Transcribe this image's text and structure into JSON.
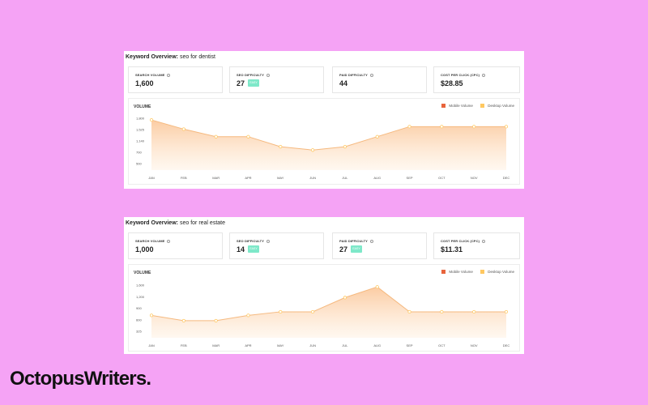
{
  "colors": {
    "background": "#f5a3f5",
    "mobile_volume": "#e8643c",
    "desktop_volume": "#ffc860",
    "area_fill": "#fbc99d",
    "line": "#f5b97f",
    "easy_badge": "#7ee8c9"
  },
  "icons": {
    "info": "info-circle-icon"
  },
  "panels": [
    {
      "title_prefix": "Keyword Overview:",
      "keyword": "seo for dentist",
      "metrics": [
        {
          "label": "SEARCH VOLUME",
          "value": "1,600"
        },
        {
          "label": "SEO DIFFICULTY",
          "value": "27",
          "badge": "EASY"
        },
        {
          "label": "PAID DIFFICULTY",
          "value": "44"
        },
        {
          "label": "COST PER CLICK (CPC)",
          "value": "$28.85"
        }
      ],
      "chart_title": "VOLUME",
      "legend": [
        "Mobile Volume",
        "Desktop Volume"
      ]
    },
    {
      "title_prefix": "Keyword Overview:",
      "keyword": "seo for real estate",
      "metrics": [
        {
          "label": "SEARCH VOLUME",
          "value": "1,000"
        },
        {
          "label": "SEO DIFFICULTY",
          "value": "14",
          "badge": "EASY"
        },
        {
          "label": "PAID DIFFICULTY",
          "value": "27",
          "badge": "EASY"
        },
        {
          "label": "COST PER CLICK (CPC)",
          "value": "$11.31"
        }
      ],
      "chart_title": "VOLUME",
      "legend": [
        "Mobile Volume",
        "Desktop Volume"
      ]
    }
  ],
  "chart_data": [
    {
      "type": "area",
      "title": "",
      "categories": [
        "JAN",
        "FEB",
        "MAR",
        "APR",
        "MAY",
        "JUN",
        "JUL",
        "AUG",
        "SEP",
        "OCT",
        "NOV",
        "DEC"
      ],
      "y_ticks": [
        "1,800",
        "1,525",
        "1,140",
        "700",
        "500"
      ],
      "ylim": [
        300,
        1850
      ],
      "series": [
        {
          "name": "Desktop Volume",
          "values": [
            1800,
            1525,
            1300,
            1300,
            1000,
            900,
            1000,
            1300,
            1600,
            1600,
            1600,
            1600
          ]
        }
      ],
      "grid": false,
      "legend_position": "top-right"
    },
    {
      "type": "area",
      "title": "",
      "categories": [
        "JAN",
        "FEB",
        "MAR",
        "APR",
        "MAY",
        "JUN",
        "JUL",
        "AUG",
        "SEP",
        "OCT",
        "NOV",
        "DEC"
      ],
      "y_ticks": [
        "1,600",
        "1,200",
        "900",
        "600",
        "325"
      ],
      "ylim": [
        170,
        1650
      ],
      "series": [
        {
          "name": "Desktop Volume",
          "values": [
            800,
            650,
            650,
            800,
            900,
            900,
            1300,
            1600,
            900,
            900,
            900,
            900
          ]
        }
      ],
      "grid": false,
      "legend_position": "top-right"
    }
  ],
  "brand": "OctopusWriters."
}
